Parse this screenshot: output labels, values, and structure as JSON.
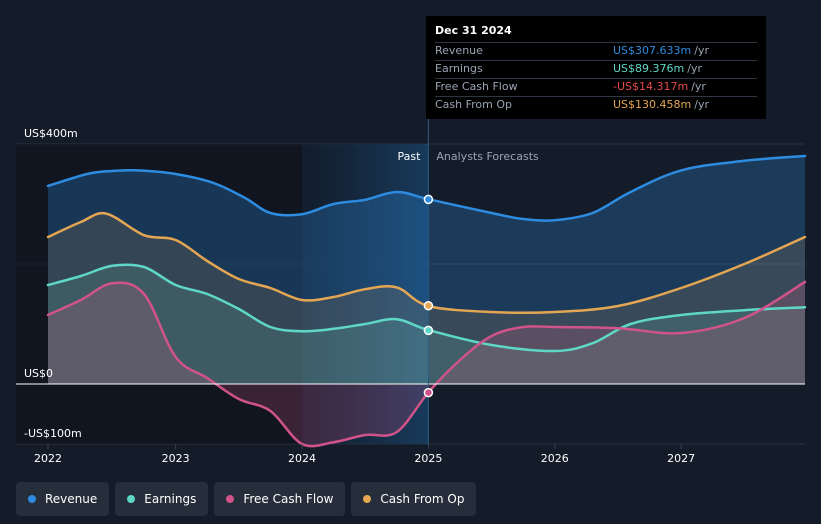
{
  "chart_data": {
    "type": "area",
    "title": "",
    "xlabel": "",
    "ylabel": "",
    "ylim": [
      -100,
      400
    ],
    "y_tick_labels": [
      "US$400m",
      "US$0",
      "-US$100m"
    ],
    "x_tick_labels": [
      "2022",
      "2023",
      "2024",
      "2025",
      "2026",
      "2027"
    ],
    "past_label": "Past",
    "forecast_label": "Analysts Forecasts",
    "x_start": 2021.99,
    "x_end": 2027.98,
    "highlight_start": 2024.0,
    "divider_x": 2025.0,
    "series": [
      {
        "name": "Revenue",
        "color": "#2d8ce0",
        "points": [
          [
            2021.99,
            330
          ],
          [
            2022.3,
            350
          ],
          [
            2022.5,
            355
          ],
          [
            2022.7,
            356
          ],
          [
            2023.0,
            350
          ],
          [
            2023.3,
            335
          ],
          [
            2023.55,
            310
          ],
          [
            2023.75,
            285
          ],
          [
            2024.0,
            283
          ],
          [
            2024.25,
            300
          ],
          [
            2024.5,
            307
          ],
          [
            2024.75,
            320
          ],
          [
            2025.0,
            308
          ],
          [
            2025.5,
            285
          ],
          [
            2025.75,
            275
          ],
          [
            2026.0,
            273
          ],
          [
            2026.3,
            285
          ],
          [
            2026.6,
            320
          ],
          [
            2027.0,
            356
          ],
          [
            2027.5,
            372
          ],
          [
            2027.98,
            380
          ]
        ],
        "marker": [
          2025.0,
          307.633
        ]
      },
      {
        "name": "Earnings",
        "color": "#5fd7c6",
        "points": [
          [
            2021.99,
            165
          ],
          [
            2022.25,
            180
          ],
          [
            2022.5,
            197
          ],
          [
            2022.75,
            195
          ],
          [
            2023.0,
            165
          ],
          [
            2023.25,
            150
          ],
          [
            2023.5,
            125
          ],
          [
            2023.75,
            95
          ],
          [
            2024.0,
            88
          ],
          [
            2024.25,
            92
          ],
          [
            2024.5,
            100
          ],
          [
            2024.75,
            108
          ],
          [
            2025.0,
            90
          ],
          [
            2025.5,
            65
          ],
          [
            2026.0,
            55
          ],
          [
            2026.3,
            68
          ],
          [
            2026.6,
            100
          ],
          [
            2027.0,
            115
          ],
          [
            2027.5,
            123
          ],
          [
            2027.98,
            128
          ]
        ],
        "marker": [
          2025.0,
          89.376
        ]
      },
      {
        "name": "Free Cash Flow",
        "color": "#d0538a",
        "points": [
          [
            2021.99,
            115
          ],
          [
            2022.25,
            140
          ],
          [
            2022.5,
            168
          ],
          [
            2022.75,
            150
          ],
          [
            2023.0,
            45
          ],
          [
            2023.25,
            10
          ],
          [
            2023.5,
            -25
          ],
          [
            2023.75,
            -45
          ],
          [
            2024.0,
            -100
          ],
          [
            2024.25,
            -97
          ],
          [
            2024.5,
            -85
          ],
          [
            2024.75,
            -80
          ],
          [
            2025.0,
            -14
          ],
          [
            2025.25,
            40
          ],
          [
            2025.5,
            80
          ],
          [
            2025.75,
            95
          ],
          [
            2026.0,
            95
          ],
          [
            2026.5,
            93
          ],
          [
            2027.0,
            85
          ],
          [
            2027.5,
            110
          ],
          [
            2027.98,
            170
          ]
        ],
        "marker": [
          2025.0,
          -14.317
        ]
      },
      {
        "name": "Cash From Op",
        "color": "#e4a653",
        "points": [
          [
            2021.99,
            245
          ],
          [
            2022.25,
            270
          ],
          [
            2022.45,
            284
          ],
          [
            2022.75,
            248
          ],
          [
            2023.0,
            240
          ],
          [
            2023.25,
            205
          ],
          [
            2023.5,
            175
          ],
          [
            2023.75,
            160
          ],
          [
            2024.0,
            140
          ],
          [
            2024.25,
            145
          ],
          [
            2024.5,
            158
          ],
          [
            2024.75,
            161
          ],
          [
            2025.0,
            130
          ],
          [
            2025.5,
            120
          ],
          [
            2026.0,
            120
          ],
          [
            2026.5,
            130
          ],
          [
            2027.0,
            160
          ],
          [
            2027.5,
            200
          ],
          [
            2027.98,
            245
          ]
        ],
        "marker": [
          2025.0,
          130.458
        ]
      }
    ]
  },
  "tooltip": {
    "date": "Dec 31 2024",
    "unit": "/yr",
    "rows": [
      {
        "label": "Revenue",
        "value": "US$307.633m",
        "color": "#2d8ce0"
      },
      {
        "label": "Earnings",
        "value": "US$89.376m",
        "color": "#5fd7c6"
      },
      {
        "label": "Free Cash Flow",
        "value": "-US$14.317m",
        "color": "#e5484d"
      },
      {
        "label": "Cash From Op",
        "value": "US$130.458m",
        "color": "#e4a653"
      }
    ]
  },
  "legend": [
    {
      "label": "Revenue",
      "color": "#2d8ce0"
    },
    {
      "label": "Earnings",
      "color": "#5fd7c6"
    },
    {
      "label": "Free Cash Flow",
      "color": "#d0538a"
    },
    {
      "label": "Cash From Op",
      "color": "#e4a653"
    }
  ]
}
